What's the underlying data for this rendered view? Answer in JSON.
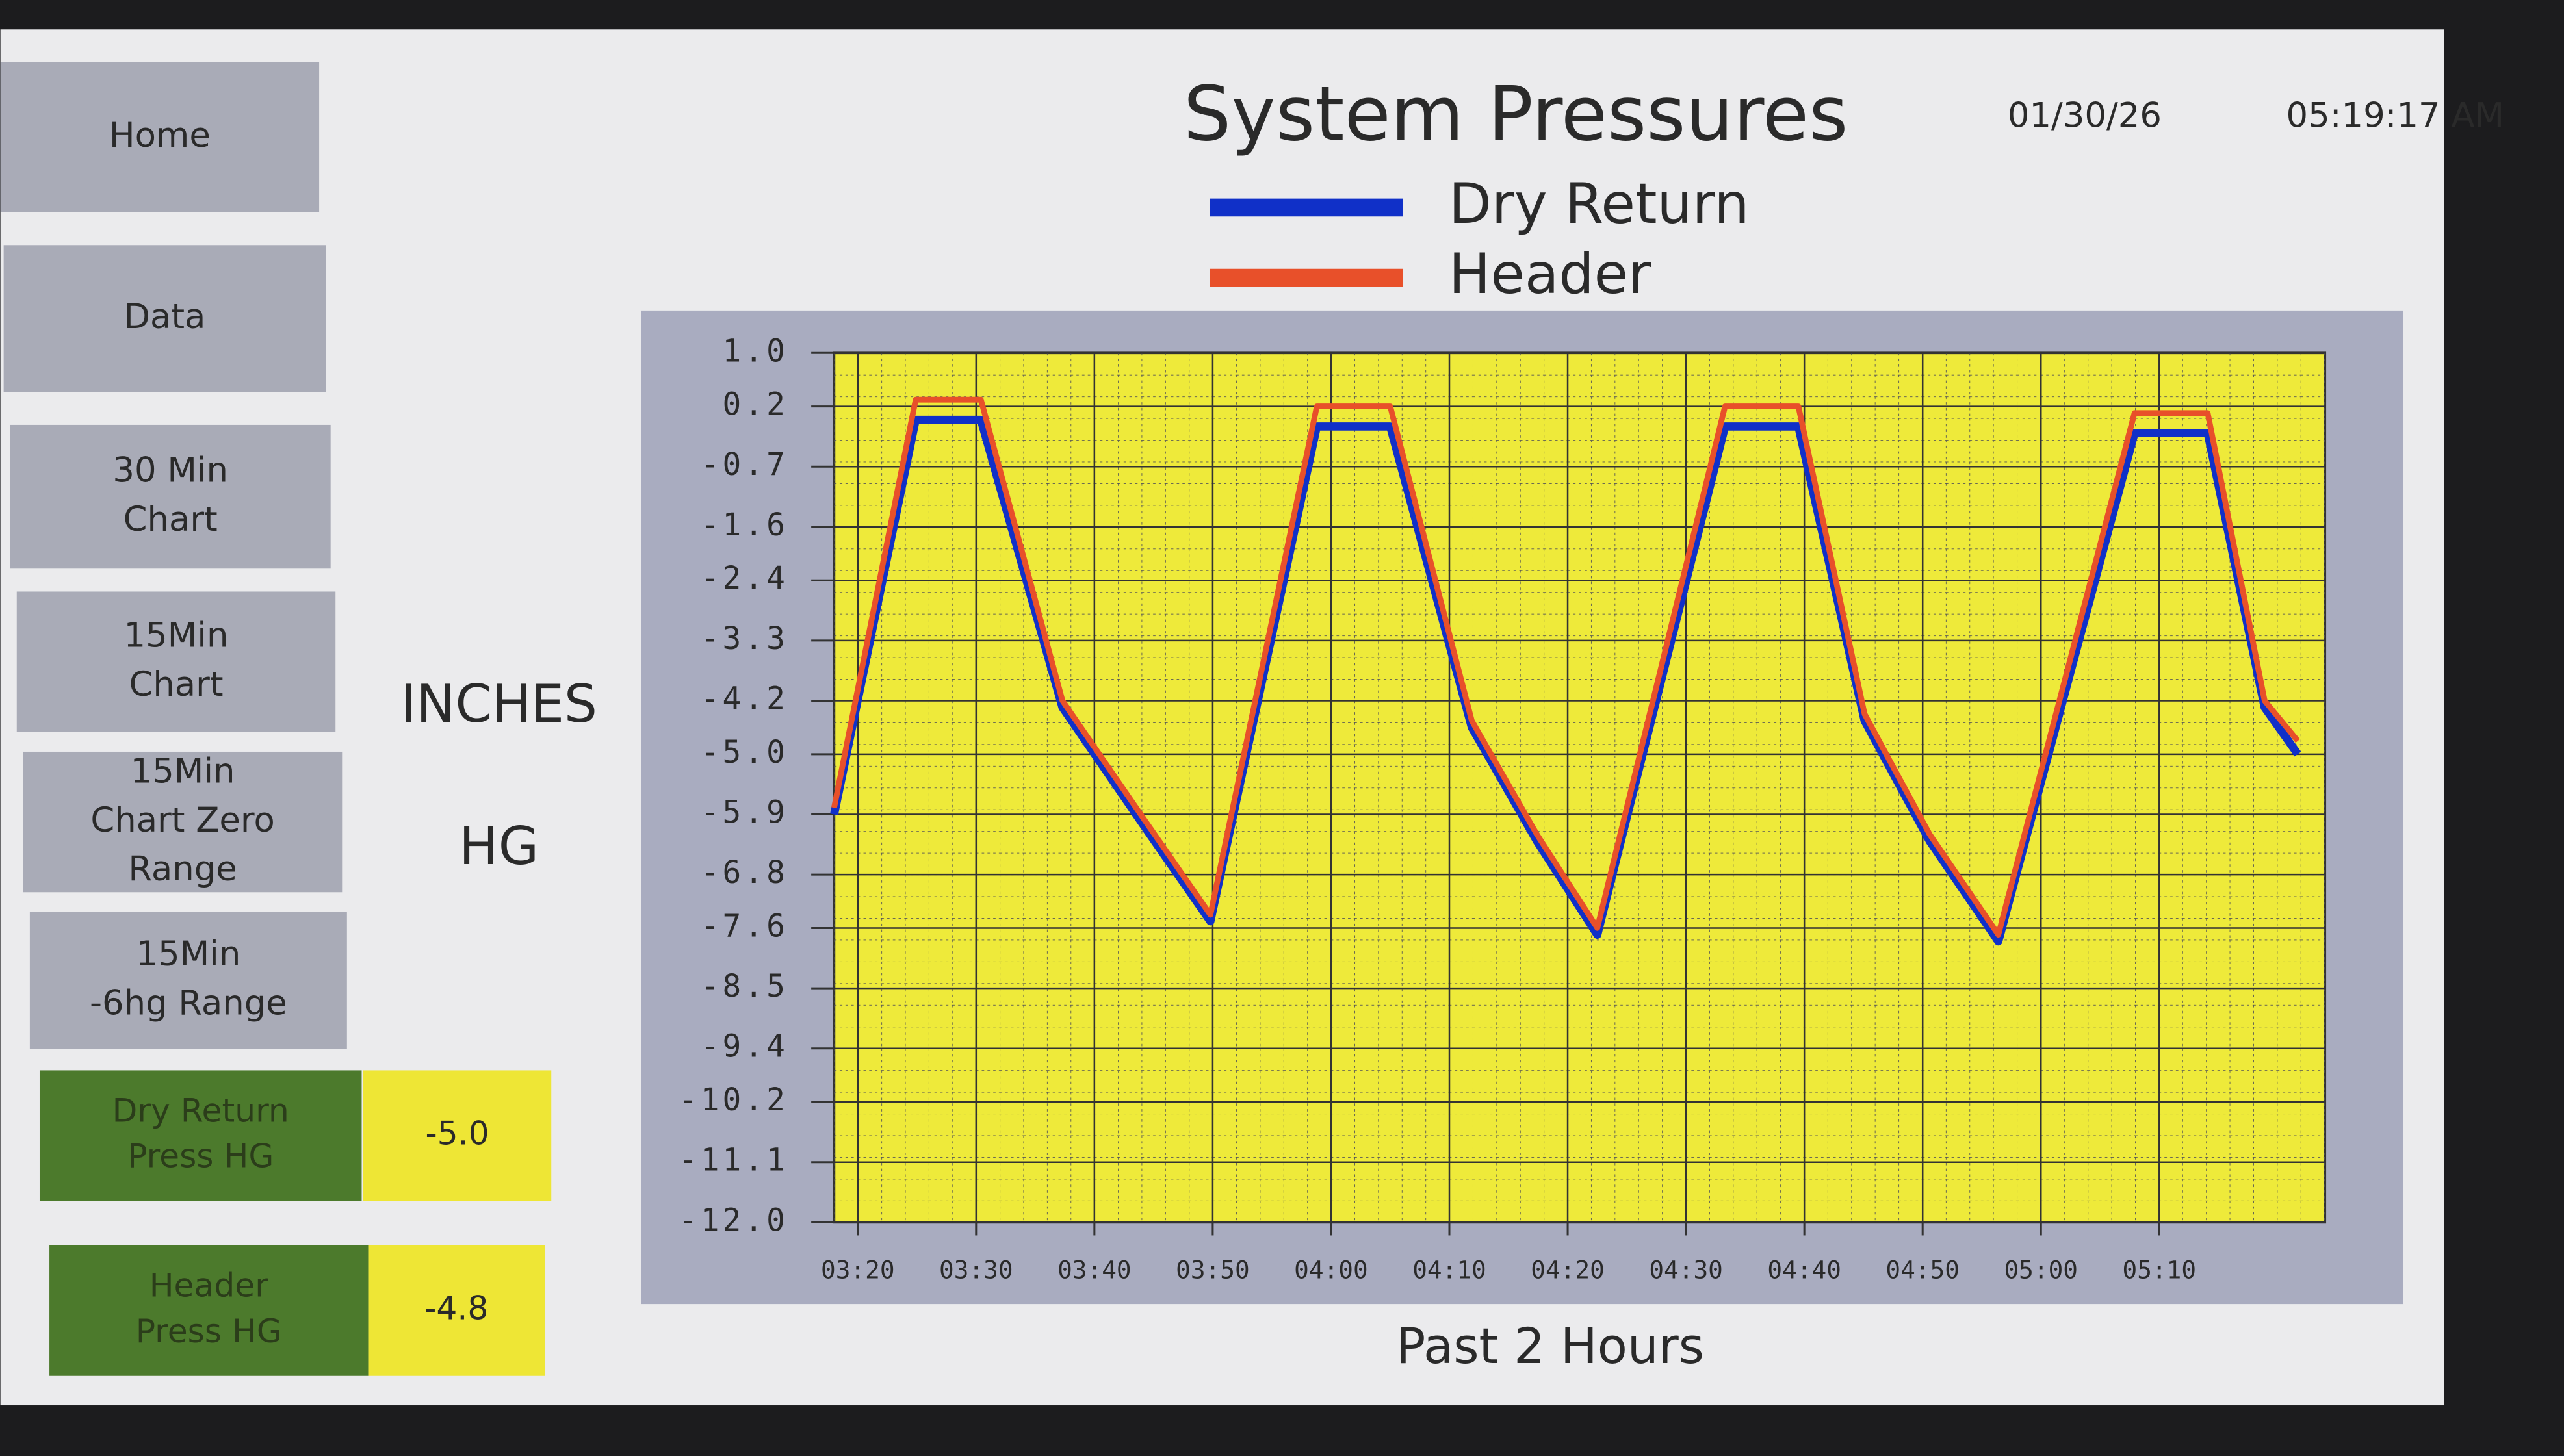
{
  "header": {
    "title": "System Pressures",
    "date": "01/30/26",
    "time": "05:19:17 AM"
  },
  "nav": [
    [
      "Home"
    ],
    [
      "Data"
    ],
    [
      "30 Min",
      "Chart"
    ],
    [
      "15Min",
      "Chart"
    ],
    [
      "15Min",
      "Chart Zero",
      "Range"
    ],
    [
      "15Min",
      "-6hg Range"
    ]
  ],
  "readouts": [
    {
      "label": [
        "Dry Return",
        "Press HG"
      ],
      "value": "-5.0"
    },
    {
      "label": [
        "Header",
        "Press HG"
      ],
      "value": "-4.8"
    }
  ],
  "chart_data": {
    "type": "line",
    "ylabel": [
      "INCHES",
      "HG"
    ],
    "xlabel": "Past 2 Hours",
    "legend": "top",
    "x": [
      198.0,
      204.9,
      210.4,
      217.3,
      224.3,
      229.8,
      238.8,
      245.0,
      251.9,
      257.4,
      262.5,
      273.3,
      279.5,
      285.1,
      290.6,
      296.4,
      307.9,
      314.1,
      318.9,
      321.7
    ],
    "series": [
      {
        "name": "Dry Return",
        "color": "#1030c8",
        "values": [
          -5.9,
          0.0,
          0.0,
          -4.3,
          -6.1,
          -7.5,
          -0.1,
          -0.1,
          -4.6,
          -6.3,
          -7.7,
          -0.1,
          -0.1,
          -4.5,
          -6.3,
          -7.8,
          -0.2,
          -0.2,
          -4.3,
          -5.0
        ]
      },
      {
        "name": "Header",
        "color": "#e8502a",
        "values": [
          -5.8,
          0.3,
          0.3,
          -4.2,
          -6.0,
          -7.4,
          0.2,
          0.2,
          -4.5,
          -6.2,
          -7.6,
          0.2,
          0.2,
          -4.4,
          -6.2,
          -7.7,
          0.1,
          0.1,
          -4.2,
          -4.8
        ]
      }
    ],
    "xlim": [
      198,
      324
    ],
    "xticks": [
      {
        "value": 200,
        "label": "03:20"
      },
      {
        "value": 210,
        "label": "03:30"
      },
      {
        "value": 220,
        "label": "03:40"
      },
      {
        "value": 230,
        "label": "03:50"
      },
      {
        "value": 240,
        "label": "04:00"
      },
      {
        "value": 250,
        "label": "04:10"
      },
      {
        "value": 260,
        "label": "04:20"
      },
      {
        "value": 270,
        "label": "04:30"
      },
      {
        "value": 280,
        "label": "04:40"
      },
      {
        "value": 290,
        "label": "04:50"
      },
      {
        "value": 300,
        "label": "05:00"
      },
      {
        "value": 310,
        "label": "05:10"
      }
    ],
    "ylim": [
      -12,
      1
    ],
    "yticks": [
      {
        "value": 1,
        "label": "1.0"
      },
      0.2,
      -0.7,
      -1.6,
      -2.4,
      -3.3,
      -4.2,
      {
        "value": -5,
        "label": "-5.0"
      },
      -5.9,
      -6.8,
      -7.6,
      -8.5,
      -9.4,
      -10.2,
      -11.1,
      {
        "value": -12,
        "label": "-12.0"
      }
    ],
    "grid": true,
    "plot_color": "#eeea3a"
  }
}
